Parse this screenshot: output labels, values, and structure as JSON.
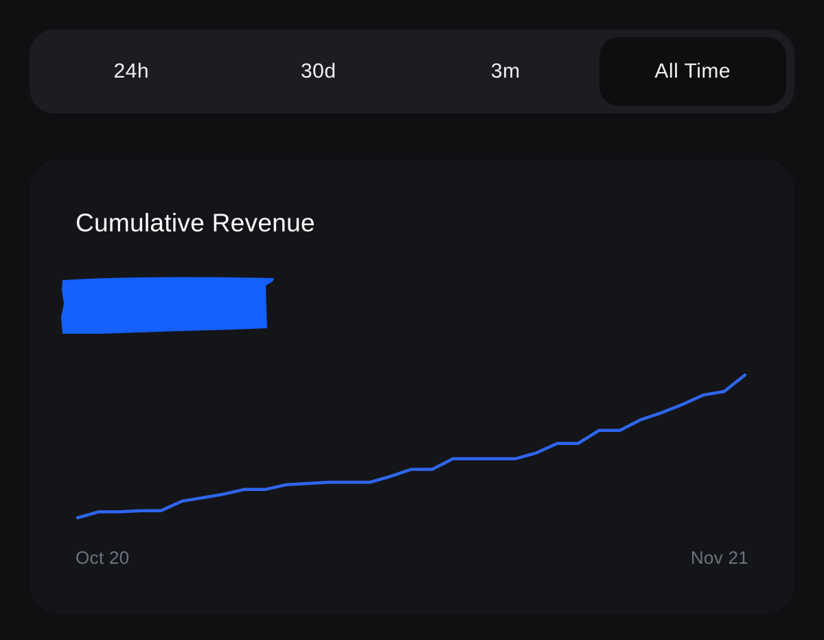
{
  "tabs": [
    {
      "label": "24h",
      "active": false
    },
    {
      "label": "30d",
      "active": false
    },
    {
      "label": "3m",
      "active": false
    },
    {
      "label": "All Time",
      "active": true
    }
  ],
  "card": {
    "title": "Cumulative Revenue"
  },
  "colors": {
    "line": "#2f66f0",
    "redaction": "#1560ff",
    "axis_text": "#6f7280"
  },
  "chart_data": {
    "type": "line",
    "title": "Cumulative Revenue",
    "x_start_label": "Oct 20",
    "x_end_label": "Nov 21",
    "x": [
      "2023-10-20",
      "2023-10-21",
      "2023-10-22",
      "2023-10-23",
      "2023-10-24",
      "2023-10-25",
      "2023-10-26",
      "2023-10-27",
      "2023-10-28",
      "2023-10-29",
      "2023-10-30",
      "2023-10-31",
      "2023-11-01",
      "2023-11-02",
      "2023-11-03",
      "2023-11-04",
      "2023-11-05",
      "2023-11-06",
      "2023-11-07",
      "2023-11-08",
      "2023-11-09",
      "2023-11-10",
      "2023-11-11",
      "2023-11-12",
      "2023-11-13",
      "2023-11-14",
      "2023-11-15",
      "2023-11-16",
      "2023-11-17",
      "2023-11-18",
      "2023-11-19",
      "2023-11-20",
      "2023-11-21"
    ],
    "series": [
      {
        "values": [
          0,
          5,
          5,
          6,
          6,
          14,
          17,
          20,
          24,
          24,
          28,
          29,
          30,
          30,
          30,
          35,
          41,
          41,
          50,
          50,
          50,
          50,
          55,
          63,
          63,
          74,
          74,
          83,
          89,
          96,
          104,
          107,
          121
        ]
      }
    ],
    "y_units": "relative (no y-axis values shown)",
    "grid": false,
    "legend": "none"
  }
}
